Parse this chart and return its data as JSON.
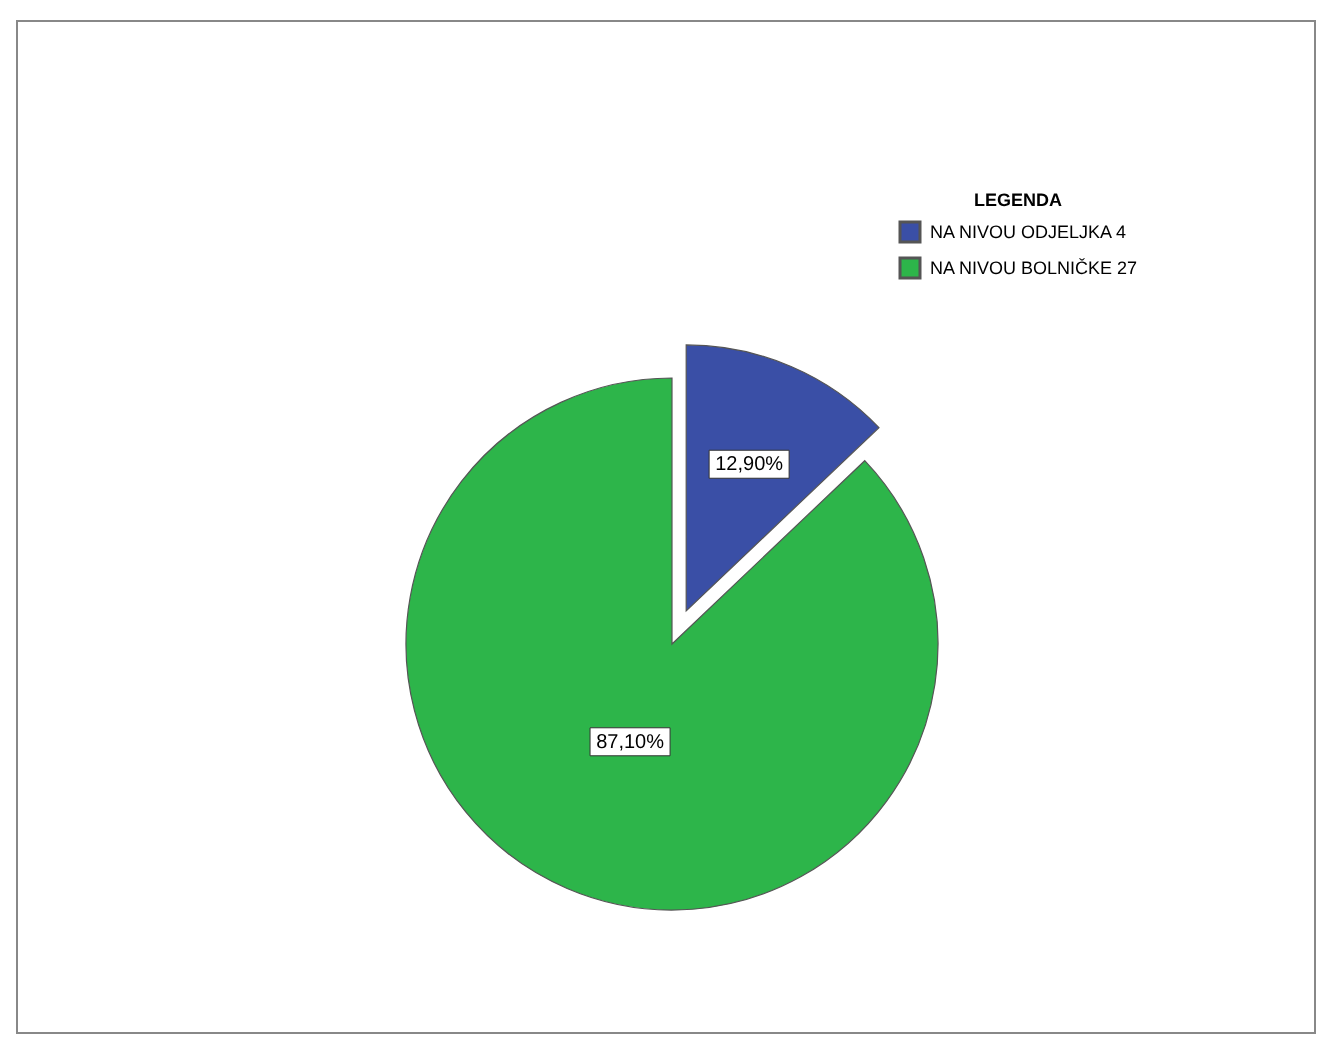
{
  "chart_data": {
    "type": "pie",
    "legend_title": "LEGENDA",
    "legend": "top right",
    "categories": [
      "NA NIVOU ODJELJKA 4",
      "NA NIVOU BOLNIČKE 27"
    ],
    "values": [
      12.9,
      87.1
    ],
    "colors": [
      "#3a4fa6",
      "#2db54a"
    ],
    "value_labels": [
      "12,90%",
      "87,10%"
    ]
  }
}
